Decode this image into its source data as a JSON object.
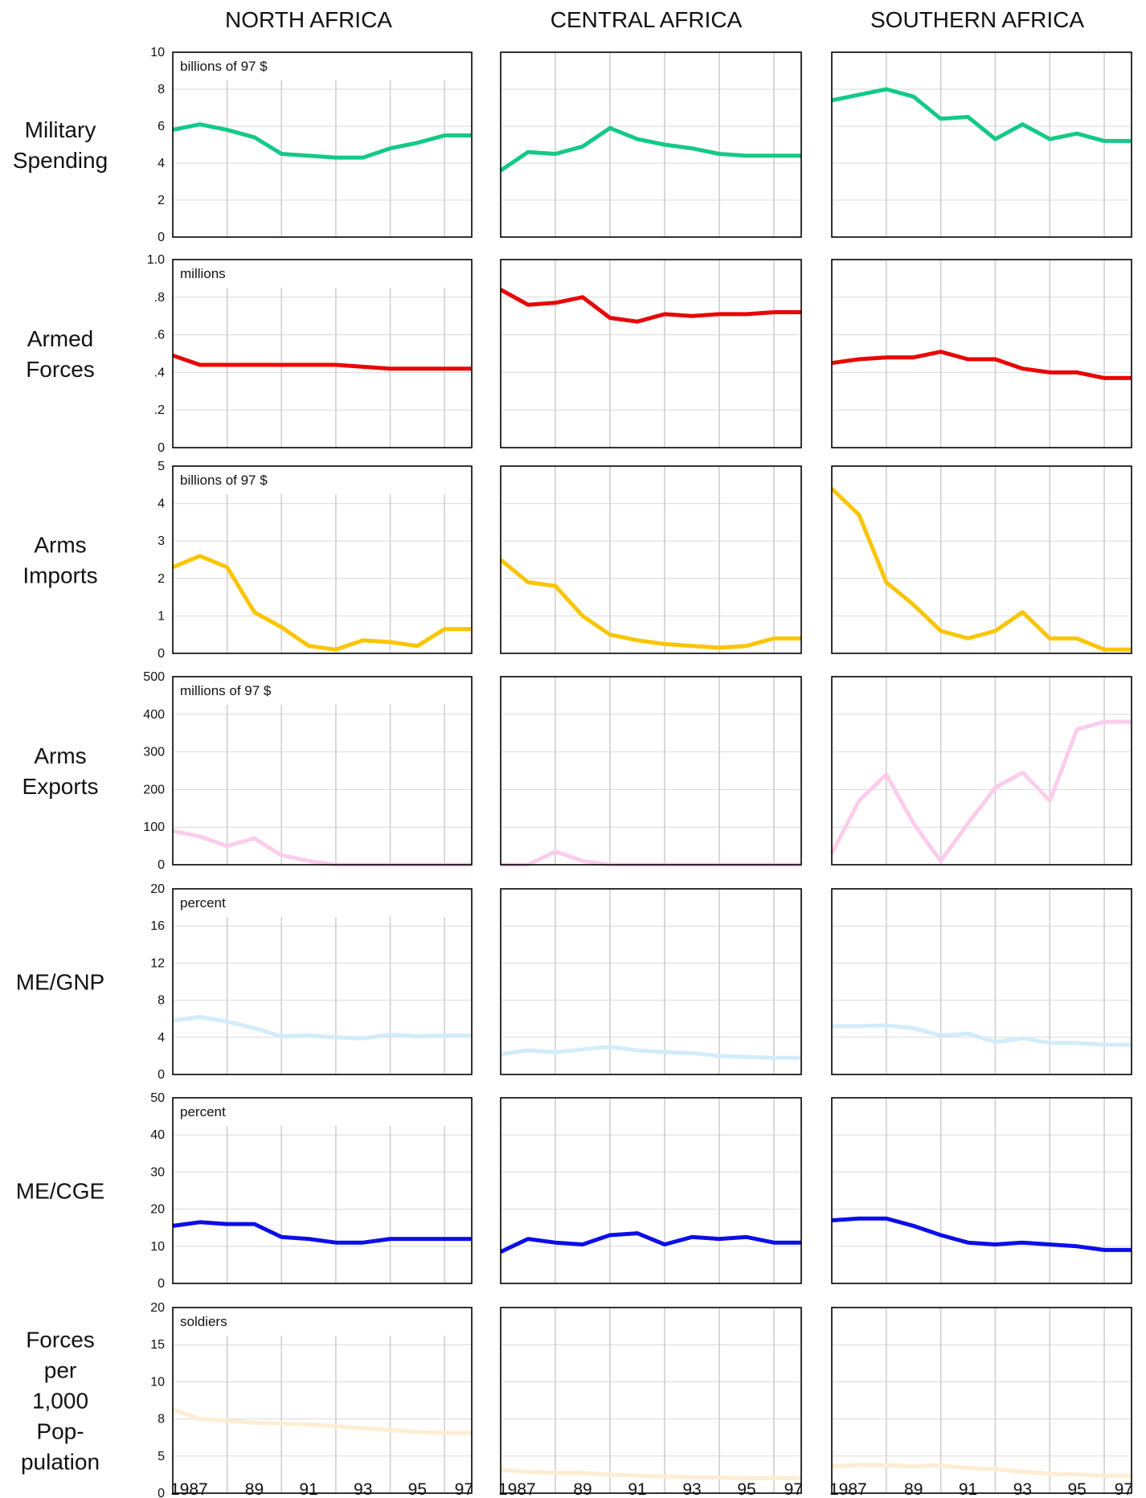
{
  "columns": [
    "NORTH AFRICA",
    "CENTRAL AFRICA",
    "SOUTHERN AFRICA"
  ],
  "x_tick_labels": [
    "1987",
    "89",
    "91",
    "93",
    "95",
    "97"
  ],
  "chart_data": [
    {
      "type": "line",
      "row_label": [
        "Military",
        "Spending"
      ],
      "unit": "billions of 97 $",
      "color": "#14c987",
      "y_ticks": [
        "10",
        "8",
        "6",
        "4",
        "2",
        "0"
      ],
      "ylim": [
        0,
        10
      ],
      "x": [
        1986,
        1987,
        1988,
        1989,
        1990,
        1991,
        1992,
        1993,
        1994,
        1995,
        1996,
        1997
      ],
      "series": [
        {
          "name": "NORTH AFRICA",
          "values": [
            5.8,
            6.1,
            5.8,
            5.4,
            4.5,
            4.4,
            4.3,
            4.3,
            4.8,
            5.1,
            5.5,
            5.5
          ]
        },
        {
          "name": "CENTRAL AFRICA",
          "values": [
            3.6,
            4.6,
            4.5,
            4.9,
            5.9,
            5.3,
            5.0,
            4.8,
            4.5,
            4.4,
            4.4,
            4.4
          ]
        },
        {
          "name": "SOUTHERN AFRICA",
          "values": [
            7.4,
            7.7,
            8.0,
            7.6,
            6.4,
            6.5,
            5.3,
            6.1,
            5.3,
            5.6,
            5.2,
            5.2
          ]
        }
      ]
    },
    {
      "type": "line",
      "row_label": [
        "Armed",
        "Forces"
      ],
      "unit": "millions",
      "color": "#e80606",
      "y_ticks": [
        "1.0",
        ".8",
        ".6",
        ".4",
        ".2",
        "0"
      ],
      "ylim": [
        0,
        1.0
      ],
      "x": [
        1986,
        1987,
        1988,
        1989,
        1990,
        1991,
        1992,
        1993,
        1994,
        1995,
        1996,
        1997
      ],
      "series": [
        {
          "name": "NORTH AFRICA",
          "values": [
            0.49,
            0.44,
            0.44,
            0.44,
            0.44,
            0.44,
            0.44,
            0.43,
            0.42,
            0.42,
            0.42,
            0.42
          ]
        },
        {
          "name": "CENTRAL AFRICA",
          "values": [
            0.84,
            0.76,
            0.77,
            0.8,
            0.69,
            0.67,
            0.71,
            0.7,
            0.71,
            0.71,
            0.72,
            0.72
          ]
        },
        {
          "name": "SOUTHERN AFRICA",
          "values": [
            0.45,
            0.47,
            0.48,
            0.48,
            0.51,
            0.47,
            0.47,
            0.42,
            0.4,
            0.4,
            0.37,
            0.37
          ]
        }
      ]
    },
    {
      "type": "line",
      "row_label": [
        "Arms",
        "Imports"
      ],
      "unit": "billions of 97 $",
      "color": "#fac500",
      "y_ticks": [
        "5",
        "4",
        "3",
        "2",
        "1",
        "0"
      ],
      "ylim": [
        0,
        5
      ],
      "x": [
        1986,
        1987,
        1988,
        1989,
        1990,
        1991,
        1992,
        1993,
        1994,
        1995,
        1996,
        1997
      ],
      "series": [
        {
          "name": "NORTH AFRICA",
          "values": [
            2.3,
            2.6,
            2.3,
            1.1,
            0.7,
            0.2,
            0.1,
            0.35,
            0.3,
            0.2,
            0.65,
            0.65
          ]
        },
        {
          "name": "CENTRAL AFRICA",
          "values": [
            2.5,
            1.9,
            1.8,
            1.0,
            0.5,
            0.35,
            0.25,
            0.2,
            0.15,
            0.2,
            0.4,
            0.4
          ]
        },
        {
          "name": "SOUTHERN AFRICA",
          "values": [
            4.4,
            3.7,
            1.9,
            1.3,
            0.6,
            0.4,
            0.6,
            1.1,
            0.4,
            0.4,
            0.1,
            0.1
          ]
        }
      ]
    },
    {
      "type": "line",
      "row_label": [
        "Arms",
        "Exports"
      ],
      "unit": "millions of 97 $",
      "color": "#fbcdeb",
      "y_ticks": [
        "500",
        "400",
        "300",
        "200",
        "100",
        "0"
      ],
      "ylim": [
        0,
        500
      ],
      "x": [
        1986,
        1987,
        1988,
        1989,
        1990,
        1991,
        1992,
        1993,
        1994,
        1995,
        1996,
        1997
      ],
      "series": [
        {
          "name": "NORTH AFRICA",
          "values": [
            90,
            75,
            50,
            70,
            25,
            10,
            0,
            0,
            0,
            0,
            0,
            0
          ]
        },
        {
          "name": "CENTRAL AFRICA",
          "values": [
            0,
            0,
            35,
            10,
            0,
            0,
            0,
            0,
            0,
            0,
            0,
            0
          ]
        },
        {
          "name": "SOUTHERN AFRICA",
          "values": [
            30,
            170,
            240,
            110,
            10,
            110,
            205,
            245,
            170,
            360,
            380,
            380
          ]
        }
      ]
    },
    {
      "type": "line",
      "row_label": [
        "ME/GNP"
      ],
      "unit": "percent",
      "color": "#d2ecfb",
      "y_ticks": [
        "20",
        "16",
        "12",
        "8",
        "4",
        "0"
      ],
      "ylim": [
        0,
        20
      ],
      "x": [
        1986,
        1987,
        1988,
        1989,
        1990,
        1991,
        1992,
        1993,
        1994,
        1995,
        1996,
        1997
      ],
      "series": [
        {
          "name": "NORTH AFRICA",
          "values": [
            5.8,
            6.2,
            5.7,
            5.0,
            4.1,
            4.2,
            4.0,
            3.9,
            4.3,
            4.1,
            4.2,
            4.2
          ]
        },
        {
          "name": "CENTRAL AFRICA",
          "values": [
            2.2,
            2.6,
            2.4,
            2.7,
            3.0,
            2.6,
            2.4,
            2.3,
            2.0,
            1.9,
            1.8,
            1.8
          ]
        },
        {
          "name": "SOUTHERN AFRICA",
          "values": [
            5.2,
            5.2,
            5.3,
            5.0,
            4.2,
            4.4,
            3.5,
            3.9,
            3.4,
            3.4,
            3.2,
            3.2
          ]
        }
      ]
    },
    {
      "type": "line",
      "row_label": [
        "ME/CGE"
      ],
      "unit": "percent",
      "color": "#0c0ee8",
      "y_ticks": [
        "50",
        "40",
        "30",
        "20",
        "10",
        "0"
      ],
      "ylim": [
        0,
        50
      ],
      "x": [
        1986,
        1987,
        1988,
        1989,
        1990,
        1991,
        1992,
        1993,
        1994,
        1995,
        1996,
        1997
      ],
      "series": [
        {
          "name": "NORTH AFRICA",
          "values": [
            15.5,
            16.5,
            16,
            16,
            12.5,
            12,
            11,
            11,
            12,
            12,
            12,
            12
          ]
        },
        {
          "name": "CENTRAL AFRICA",
          "values": [
            8.5,
            12,
            11,
            10.5,
            13,
            13.5,
            10.5,
            12.5,
            12,
            12.5,
            11,
            11
          ]
        },
        {
          "name": "SOUTHERN AFRICA",
          "values": [
            17,
            17.5,
            17.5,
            15.5,
            13,
            11,
            10.5,
            11,
            10.5,
            10,
            9,
            9
          ]
        }
      ]
    },
    {
      "type": "line",
      "row_label": [
        "Forces",
        "per",
        "1,000",
        "Pop-",
        "pulation"
      ],
      "unit": "soldiers",
      "color": "#fdedd2",
      "y_ticks": [
        "20",
        "15",
        "10",
        "8",
        "5",
        "0"
      ],
      "ylim": [
        0,
        20
      ],
      "x": [
        1986,
        1987,
        1988,
        1989,
        1990,
        1991,
        1992,
        1993,
        1994,
        1995,
        1996,
        1997
      ],
      "series": [
        {
          "name": "NORTH AFRICA",
          "values": [
            9.0,
            8.0,
            7.8,
            7.6,
            7.5,
            7.4,
            7.2,
            7.0,
            6.8,
            6.6,
            6.5,
            6.5
          ]
        },
        {
          "name": "CENTRAL AFRICA",
          "values": [
            2.5,
            2.3,
            2.2,
            2.2,
            2.0,
            1.9,
            1.8,
            1.7,
            1.7,
            1.6,
            1.6,
            1.6
          ]
        },
        {
          "name": "SOUTHERN AFRICA",
          "values": [
            2.9,
            3.0,
            3.0,
            2.9,
            3.0,
            2.7,
            2.6,
            2.3,
            2.1,
            2.0,
            1.9,
            1.9
          ]
        }
      ]
    }
  ]
}
